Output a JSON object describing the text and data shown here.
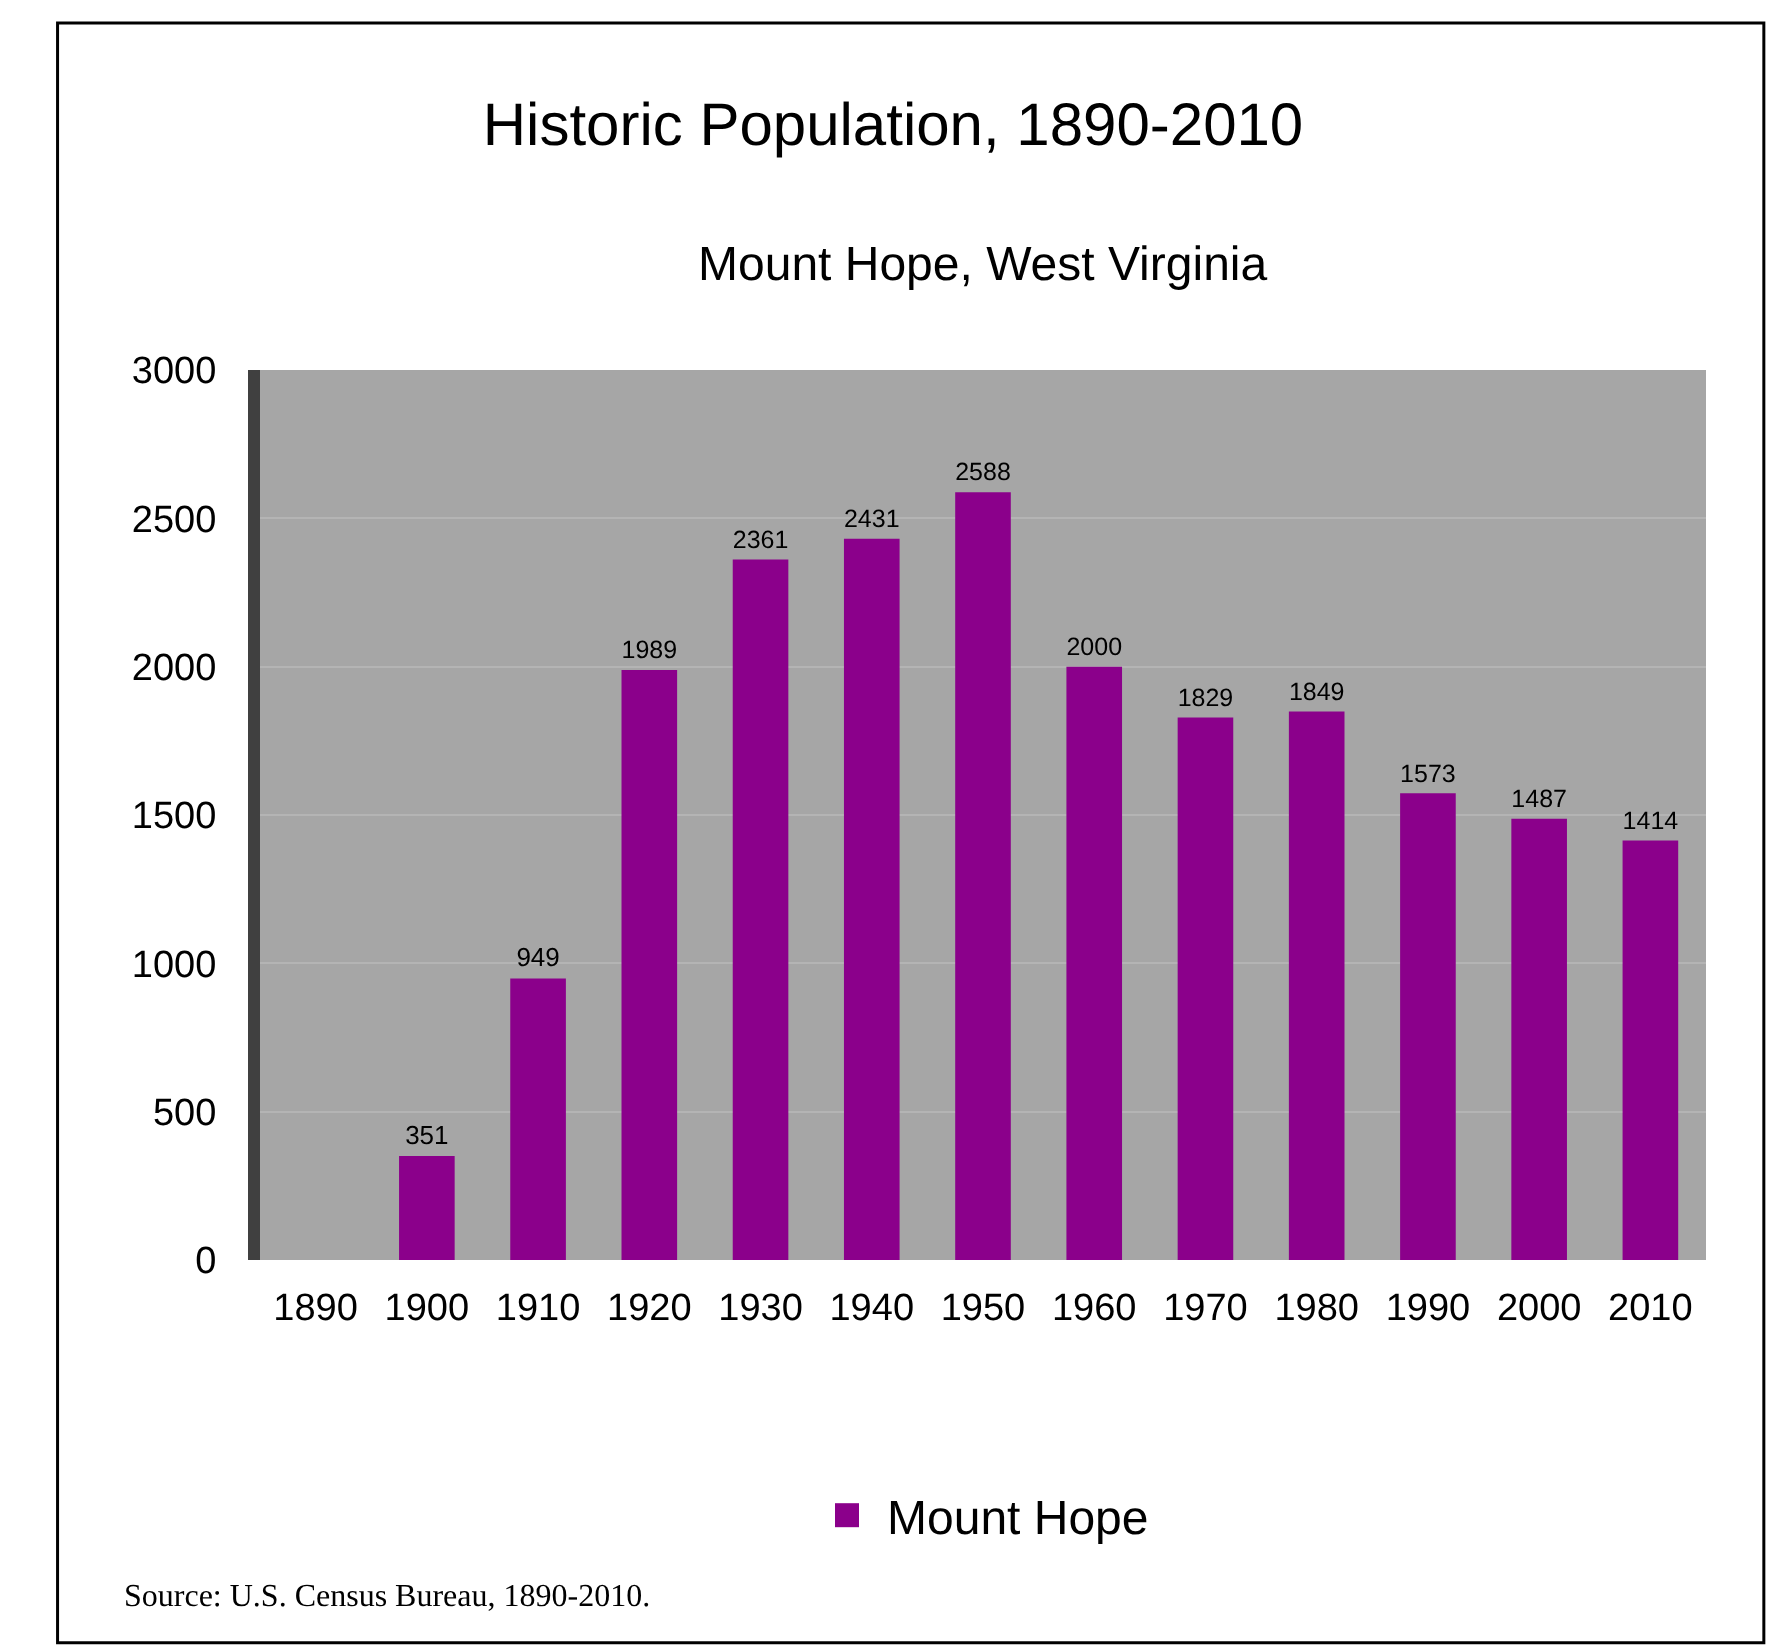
{
  "chart_data": {
    "type": "bar",
    "title": "Historic Population, 1890-2010",
    "subtitle": "Mount Hope, West Virginia",
    "categories": [
      "1890",
      "1900",
      "1910",
      "1920",
      "1930",
      "1940",
      "1950",
      "1960",
      "1970",
      "1980",
      "1990",
      "2000",
      "2010"
    ],
    "series": [
      {
        "name": "Mount Hope",
        "color": "#8b008b",
        "values": [
          null,
          351,
          949,
          1989,
          2361,
          2431,
          2588,
          2000,
          1829,
          1849,
          1573,
          1487,
          1414
        ]
      }
    ],
    "ylim": [
      0,
      3000
    ],
    "yticks": [
      0,
      500,
      1000,
      1500,
      2000,
      2500,
      3000
    ],
    "grid": "y",
    "data_labels": true,
    "legend": "bottom",
    "annotations": [
      "Source: U.S. Census Bureau, 1890-2010."
    ]
  }
}
